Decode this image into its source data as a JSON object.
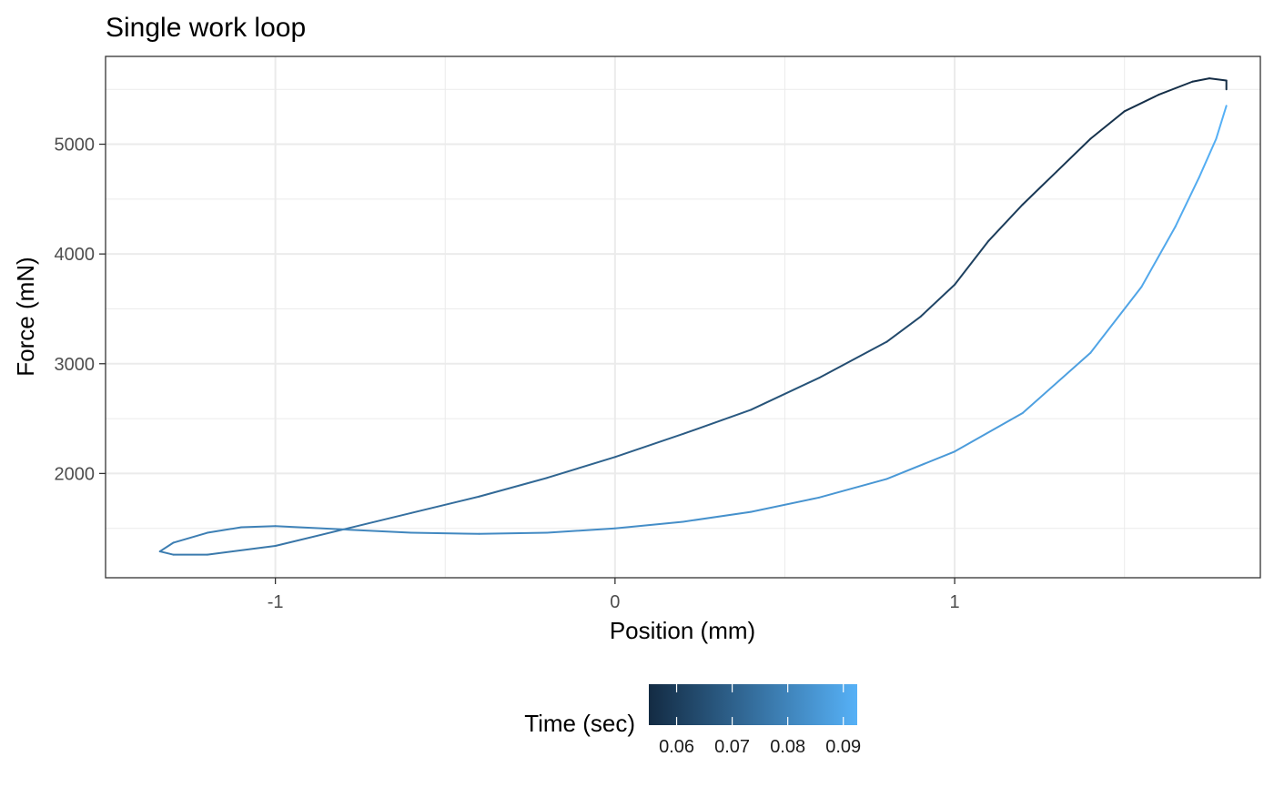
{
  "chart_data": {
    "type": "line",
    "title": "Single work loop",
    "xlabel": "Position (mm)",
    "ylabel": "Force (mN)",
    "xlim": [
      -1.5,
      1.9
    ],
    "ylim": [
      1050,
      5800
    ],
    "x_ticks": [
      -1,
      0,
      1
    ],
    "x_tick_labels": [
      "-1",
      "0",
      "1"
    ],
    "y_ticks": [
      2000,
      3000,
      4000,
      5000
    ],
    "y_tick_labels": [
      "2000",
      "3000",
      "4000",
      "5000"
    ],
    "grid": true,
    "legend": {
      "title": "Time (sec)",
      "position": "bottom",
      "type": "colorbar",
      "range": [
        0.055,
        0.0925
      ],
      "ticks": [
        0.06,
        0.07,
        0.08,
        0.09
      ],
      "tick_labels": [
        "0.06",
        "0.07",
        "0.08",
        "0.09"
      ],
      "color_low": "#132b43",
      "color_high": "#56b1f7"
    },
    "series": [
      {
        "color_by": "time",
        "points": [
          {
            "x": 1.8,
            "y": 5500,
            "t": 0.055
          },
          {
            "x": 1.8,
            "y": 5580,
            "t": 0.0552
          },
          {
            "x": 1.75,
            "y": 5600,
            "t": 0.0555
          },
          {
            "x": 1.7,
            "y": 5570,
            "t": 0.0558
          },
          {
            "x": 1.6,
            "y": 5450,
            "t": 0.0562
          },
          {
            "x": 1.5,
            "y": 5300,
            "t": 0.0567
          },
          {
            "x": 1.4,
            "y": 5050,
            "t": 0.0575
          },
          {
            "x": 1.3,
            "y": 4750,
            "t": 0.0585
          },
          {
            "x": 1.2,
            "y": 4450,
            "t": 0.0595
          },
          {
            "x": 1.1,
            "y": 4120,
            "t": 0.0605
          },
          {
            "x": 1.0,
            "y": 3720,
            "t": 0.0617
          },
          {
            "x": 0.9,
            "y": 3430,
            "t": 0.0628
          },
          {
            "x": 0.8,
            "y": 3200,
            "t": 0.0638
          },
          {
            "x": 0.6,
            "y": 2870,
            "t": 0.0655
          },
          {
            "x": 0.4,
            "y": 2580,
            "t": 0.0672
          },
          {
            "x": 0.2,
            "y": 2360,
            "t": 0.0688
          },
          {
            "x": 0.0,
            "y": 2150,
            "t": 0.0702
          },
          {
            "x": -0.2,
            "y": 1960,
            "t": 0.0716
          },
          {
            "x": -0.4,
            "y": 1790,
            "t": 0.0729
          },
          {
            "x": -0.6,
            "y": 1640,
            "t": 0.0741
          },
          {
            "x": -0.8,
            "y": 1490,
            "t": 0.0752
          },
          {
            "x": -1.0,
            "y": 1340,
            "t": 0.0763
          },
          {
            "x": -1.2,
            "y": 1260,
            "t": 0.0771
          },
          {
            "x": -1.3,
            "y": 1260,
            "t": 0.0775
          },
          {
            "x": -1.34,
            "y": 1290,
            "t": 0.0778
          },
          {
            "x": -1.3,
            "y": 1370,
            "t": 0.0781
          },
          {
            "x": -1.2,
            "y": 1460,
            "t": 0.0785
          },
          {
            "x": -1.1,
            "y": 1510,
            "t": 0.0789
          },
          {
            "x": -1.0,
            "y": 1520,
            "t": 0.0793
          },
          {
            "x": -0.8,
            "y": 1490,
            "t": 0.08
          },
          {
            "x": -0.6,
            "y": 1460,
            "t": 0.0807
          },
          {
            "x": -0.4,
            "y": 1450,
            "t": 0.0813
          },
          {
            "x": -0.2,
            "y": 1460,
            "t": 0.0819
          },
          {
            "x": 0.0,
            "y": 1500,
            "t": 0.0825
          },
          {
            "x": 0.2,
            "y": 1560,
            "t": 0.0831
          },
          {
            "x": 0.4,
            "y": 1650,
            "t": 0.0838
          },
          {
            "x": 0.6,
            "y": 1780,
            "t": 0.0845
          },
          {
            "x": 0.8,
            "y": 1950,
            "t": 0.0853
          },
          {
            "x": 1.0,
            "y": 2200,
            "t": 0.0862
          },
          {
            "x": 1.2,
            "y": 2550,
            "t": 0.0872
          },
          {
            "x": 1.4,
            "y": 3100,
            "t": 0.0884
          },
          {
            "x": 1.55,
            "y": 3700,
            "t": 0.0895
          },
          {
            "x": 1.65,
            "y": 4250,
            "t": 0.0905
          },
          {
            "x": 1.72,
            "y": 4700,
            "t": 0.0913
          },
          {
            "x": 1.77,
            "y": 5050,
            "t": 0.0919
          },
          {
            "x": 1.8,
            "y": 5350,
            "t": 0.0925
          }
        ]
      }
    ]
  }
}
